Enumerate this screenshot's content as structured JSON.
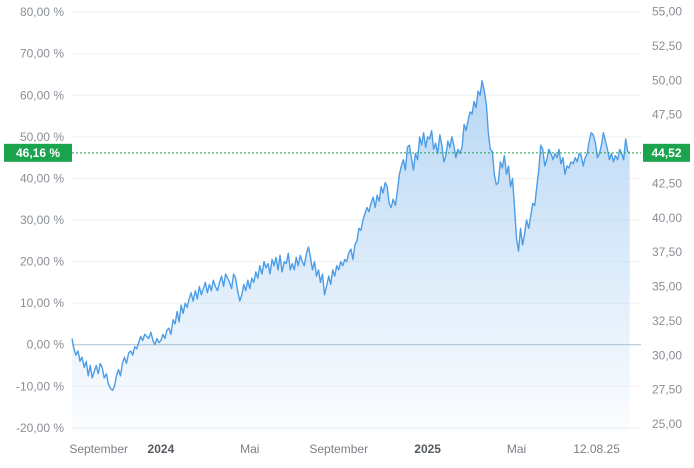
{
  "chart_data": {
    "type": "area",
    "y_left": {
      "ticks": [
        -20,
        -10,
        0,
        10,
        20,
        30,
        40,
        50,
        60,
        70,
        80
      ],
      "tick_labels": [
        "-20,00 %",
        "-10,00 %",
        "0,00 %",
        "10,00 %",
        "20,00 %",
        "30,00 %",
        "40,00 %",
        "50,00 %",
        "60,00 %",
        "70,00 %",
        "80,00 %"
      ],
      "range": [
        -21,
        81
      ]
    },
    "y_right": {
      "ticks": [
        25,
        27.5,
        30,
        32.5,
        35,
        37.5,
        40,
        42.5,
        45,
        47.5,
        50,
        52.5,
        55
      ],
      "tick_labels": [
        "25,00",
        "27,50",
        "30,00",
        "32,50",
        "35,00",
        "37,50",
        "40,00",
        "42,50",
        "45,00",
        "47,50",
        "50,00",
        "52,50",
        "55,00"
      ],
      "range": [
        24.42,
        55.26
      ]
    },
    "x_axis": {
      "range": [
        0,
        25.6
      ],
      "ticks": [
        {
          "pos": 1.2,
          "label": "September",
          "bold": false
        },
        {
          "pos": 4.0,
          "label": "2024",
          "bold": true
        },
        {
          "pos": 8.0,
          "label": "Mai",
          "bold": false
        },
        {
          "pos": 12.0,
          "label": "September",
          "bold": false
        },
        {
          "pos": 16.0,
          "label": "2025",
          "bold": true
        },
        {
          "pos": 20.0,
          "label": "Mai",
          "bold": false
        },
        {
          "pos": 23.6,
          "label": "12.08.25",
          "bold": false
        }
      ]
    },
    "baseline": 0,
    "grid": true,
    "current": {
      "left_label": "46,16 %",
      "left_value": 46.16,
      "right_label": "44,52",
      "right_value": 44.52
    },
    "colors": {
      "line": "#4d9de6",
      "fill_top": "#b9d7f5",
      "badge": "#1aa44e",
      "baseline": "#a9bdcf",
      "grid": "#eeeeee"
    },
    "series": [
      {
        "x": [
          0.0,
          0.09,
          0.18,
          0.27,
          0.36,
          0.45,
          0.55,
          0.64,
          0.73,
          0.82,
          0.91,
          1.0,
          1.09,
          1.18,
          1.27,
          1.36,
          1.45,
          1.55,
          1.64,
          1.73,
          1.82,
          1.91,
          2.0,
          2.09,
          2.18,
          2.27,
          2.36,
          2.45,
          2.55,
          2.64,
          2.73,
          2.82,
          2.91,
          3.0,
          3.09,
          3.18,
          3.27,
          3.36,
          3.45,
          3.55,
          3.64,
          3.73,
          3.82,
          3.91,
          4.0,
          4.09,
          4.18,
          4.27,
          4.36,
          4.45,
          4.55,
          4.64,
          4.73,
          4.82,
          4.91,
          5.0,
          5.09,
          5.18,
          5.27,
          5.36,
          5.45,
          5.55,
          5.64,
          5.73,
          5.82,
          5.91,
          6.0,
          6.09,
          6.18,
          6.27,
          6.36,
          6.45,
          6.55,
          6.64,
          6.73,
          6.82,
          6.91,
          7.0,
          7.09,
          7.18,
          7.27,
          7.36,
          7.45,
          7.55,
          7.64,
          7.73,
          7.82,
          7.91,
          8.0,
          8.09,
          8.18,
          8.27,
          8.36,
          8.45,
          8.55,
          8.64,
          8.73,
          8.82,
          8.91,
          9.0,
          9.09,
          9.18,
          9.27,
          9.36,
          9.45,
          9.55,
          9.64,
          9.73,
          9.82,
          9.91,
          10.0,
          10.09,
          10.18,
          10.27,
          10.36,
          10.45,
          10.55,
          10.64,
          10.73,
          10.82,
          10.91,
          11.0,
          11.09,
          11.18,
          11.27,
          11.36,
          11.45,
          11.55,
          11.64,
          11.73,
          11.82,
          11.91,
          12.0,
          12.09,
          12.18,
          12.27,
          12.36,
          12.45,
          12.55,
          12.64,
          12.73,
          12.82,
          12.91,
          13.0,
          13.09,
          13.18,
          13.27,
          13.36,
          13.45,
          13.55,
          13.64,
          13.73,
          13.82,
          13.91,
          14.0,
          14.09,
          14.18,
          14.27,
          14.36,
          14.45,
          14.55,
          14.64,
          14.73,
          14.82,
          14.91,
          15.0,
          15.09,
          15.18,
          15.27,
          15.36,
          15.45,
          15.55,
          15.64,
          15.73,
          15.82,
          15.91,
          16.0,
          16.09,
          16.18,
          16.27,
          16.36,
          16.45,
          16.55,
          16.64,
          16.73,
          16.82,
          16.91,
          17.0,
          17.09,
          17.18,
          17.27,
          17.36,
          17.45,
          17.55,
          17.64,
          17.73,
          17.82,
          17.91,
          18.0,
          18.09,
          18.18,
          18.27,
          18.36,
          18.45,
          18.55,
          18.64,
          18.73,
          18.82,
          18.91,
          19.0,
          19.09,
          19.18,
          19.27,
          19.36,
          19.45,
          19.55,
          19.64,
          19.73,
          19.82,
          19.91,
          20.0,
          20.09,
          20.18,
          20.27,
          20.36,
          20.45,
          20.55,
          20.64,
          20.73,
          20.82,
          20.91,
          21.0,
          21.09,
          21.18,
          21.27,
          21.36,
          21.45,
          21.55,
          21.64,
          21.73,
          21.82,
          21.91,
          22.0,
          22.09,
          22.18,
          22.27,
          22.36,
          22.45,
          22.55,
          22.64,
          22.73,
          22.82,
          22.91,
          23.0,
          23.09,
          23.18,
          23.27,
          23.36,
          23.45,
          23.55,
          23.64,
          23.73,
          23.82,
          23.91,
          24.0,
          24.09,
          24.18,
          24.27,
          24.36,
          24.45,
          24.55,
          24.64,
          24.73,
          24.82,
          24.91,
          25.0,
          25.09
        ],
        "y": [
          1.5,
          -1,
          -2.5,
          -1.5,
          -4,
          -3,
          -5.5,
          -4,
          -7.5,
          -5,
          -8,
          -6.5,
          -5,
          -7,
          -4.5,
          -5.5,
          -8,
          -7,
          -9.5,
          -10.5,
          -11,
          -10,
          -7.5,
          -6,
          -7.5,
          -4.5,
          -3,
          -4.5,
          -2,
          -1.5,
          -2.5,
          -0.5,
          -1,
          0.5,
          2,
          1,
          2.5,
          2,
          1.5,
          3,
          1,
          0,
          1.5,
          0.5,
          1,
          2.5,
          1.5,
          3.5,
          4,
          2.5,
          6,
          5,
          8,
          5.5,
          9.5,
          7.5,
          10,
          9,
          11,
          12.5,
          10.5,
          13,
          11,
          14,
          12,
          13.5,
          15,
          12.5,
          14.5,
          13,
          15.5,
          14,
          13,
          15,
          16.5,
          14,
          17,
          16,
          15,
          13.5,
          17,
          16,
          13,
          10.5,
          12,
          14.5,
          13,
          15.5,
          13.5,
          16,
          15,
          17.5,
          16,
          19,
          17,
          20,
          18.5,
          19.5,
          17,
          20.5,
          19,
          21,
          18,
          21.5,
          17.5,
          20,
          19.5,
          22,
          18,
          19.5,
          18,
          21,
          19,
          21.5,
          20,
          19,
          22,
          23.5,
          21,
          18,
          20,
          16.5,
          18,
          15,
          17,
          12,
          14,
          16.5,
          14.5,
          18,
          16.5,
          19,
          18,
          20,
          19,
          20.5,
          20,
          22,
          23,
          20.5,
          24,
          25,
          28,
          27.5,
          30,
          31.5,
          33,
          32,
          34,
          35.5,
          33,
          36,
          34.5,
          38,
          36.5,
          39,
          38,
          34,
          33,
          35,
          33.5,
          37,
          41,
          43,
          44.5,
          42,
          47.5,
          48,
          45,
          42,
          46,
          44.5,
          50,
          48,
          51,
          47.5,
          50,
          49.5,
          51.5,
          47,
          48.5,
          46,
          50.5,
          48,
          44,
          45.5,
          49,
          47.5,
          50,
          48,
          45,
          47,
          46,
          47.5,
          53,
          51.5,
          54,
          56,
          55.5,
          58.5,
          57,
          61,
          60,
          63.5,
          61,
          58,
          51,
          47,
          46.5,
          41,
          38.5,
          39,
          44,
          42.5,
          45.5,
          41,
          43,
          38,
          40,
          33,
          25.5,
          22.5,
          28,
          24,
          26.5,
          30,
          28,
          31,
          34,
          33.5,
          38,
          42,
          48,
          47,
          43,
          44.5,
          47,
          46,
          44.5,
          46,
          45,
          47,
          43.5,
          45,
          41,
          43,
          42.5,
          44,
          43.5,
          45,
          44,
          46,
          45.5,
          43,
          45,
          46,
          49,
          51,
          50.5,
          48.5,
          45,
          46,
          48,
          51,
          49,
          47,
          44.5,
          46,
          44,
          45.5,
          44.5,
          47,
          46,
          44.5,
          49.5,
          46.5,
          46.16
        ]
      }
    ]
  }
}
